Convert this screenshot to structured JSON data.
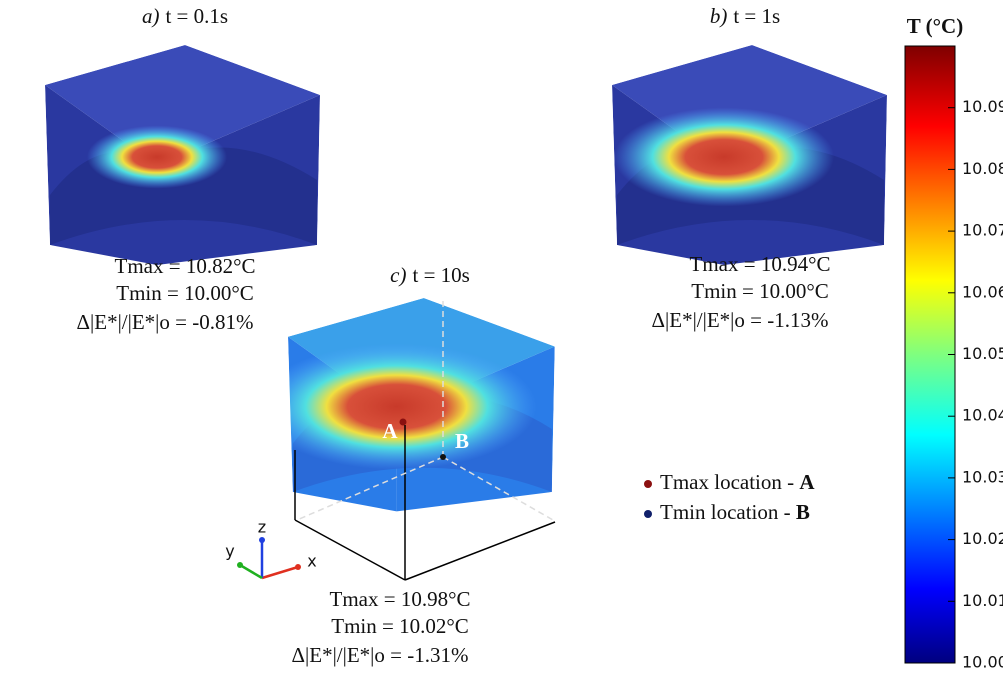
{
  "panels": [
    {
      "label": "a)",
      "time": "t = 0.1s",
      "tmax": "Tmax = 10.82°C",
      "tmin": "Tmin = 10.00°C",
      "change": "Δ|E*|/|E*|o = -0.81%"
    },
    {
      "label": "b)",
      "time": "t = 1s",
      "tmax": "Tmax = 10.94°C",
      "tmin": "Tmin = 10.00°C",
      "change": "Δ|E*|/|E*|o = -1.13%"
    },
    {
      "label": "c)",
      "time": "t = 10s",
      "tmax": "Tmax = 10.98°C",
      "tmin": "Tmin = 10.02°C",
      "change": "Δ|E*|/|E*|o = -1.31%",
      "points": [
        "A",
        "B"
      ]
    }
  ],
  "axes": [
    "x",
    "y",
    "z"
  ],
  "legend": [
    {
      "text": "Tmax location - ",
      "point": "A"
    },
    {
      "text": "Tmin location - ",
      "point": "B"
    }
  ],
  "colorbar": {
    "title": "T (°C)",
    "range": [
      10.0,
      10.1
    ],
    "ticks": [
      {
        "value": 10.0,
        "label": "10.00"
      },
      {
        "value": 10.01,
        "label": "10.01"
      },
      {
        "value": 10.02,
        "label": "10.02"
      },
      {
        "value": 10.03,
        "label": "10.03"
      },
      {
        "value": 10.04,
        "label": "10.04"
      },
      {
        "value": 10.05,
        "label": "10.05"
      },
      {
        "value": 10.06,
        "label": "10.06"
      },
      {
        "value": 10.07,
        "label": "10.07"
      },
      {
        "value": 10.08,
        "label": "10.08"
      },
      {
        "value": 10.09,
        "label": "10.09"
      }
    ]
  }
}
